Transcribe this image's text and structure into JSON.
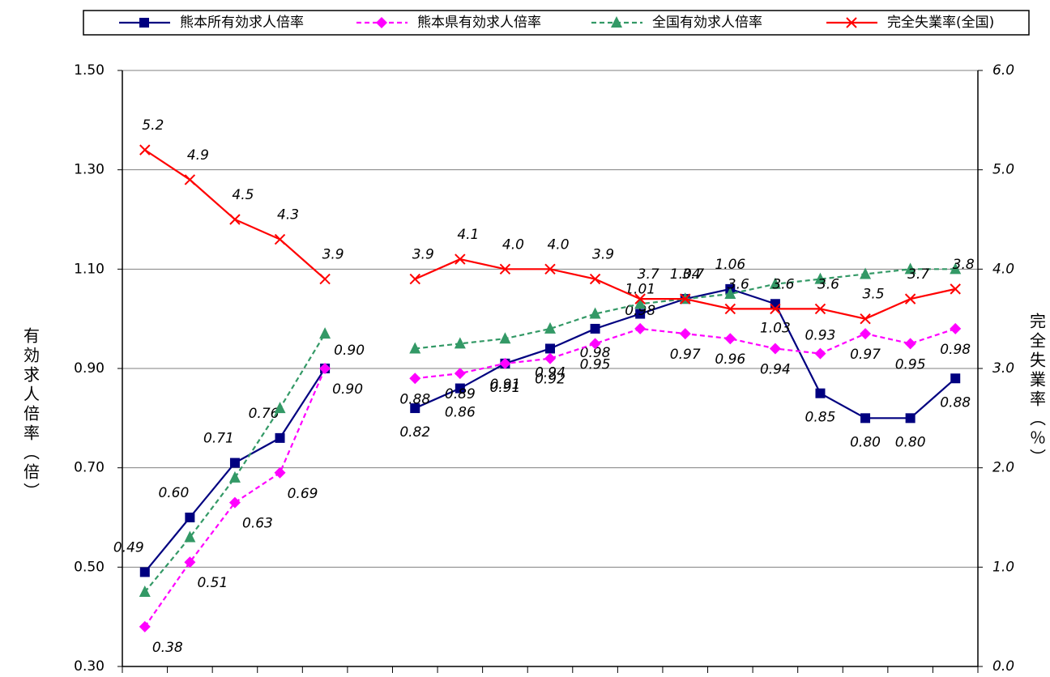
{
  "chart_data": {
    "type": "line",
    "categories": [
      null,
      null,
      null,
      null,
      null,
      null,
      null,
      null,
      null,
      null,
      null,
      null,
      null,
      null,
      null,
      null,
      null,
      null,
      null
    ],
    "y_label": "有効求人倍率（倍）",
    "y2_label": "完全失業率（％）",
    "ylim": [
      0.3,
      1.5
    ],
    "yticks": [
      {
        "value": 0.3,
        "label": "0.30"
      },
      {
        "value": 0.5,
        "label": "0.50"
      },
      {
        "value": 0.7,
        "label": "0.70"
      },
      {
        "value": 0.9,
        "label": "0.90"
      },
      {
        "value": 1.1,
        "label": "1.10"
      },
      {
        "value": 1.3,
        "label": "1.30"
      },
      {
        "value": 1.5,
        "label": "1.50"
      }
    ],
    "y2lim": [
      0,
      6
    ],
    "y2ticks": [
      {
        "value": 0,
        "label": "0.0"
      },
      {
        "value": 1,
        "label": "1.0"
      },
      {
        "value": 2,
        "label": "2.0"
      },
      {
        "value": 3,
        "label": "3.0"
      },
      {
        "value": 4,
        "label": "4.0"
      },
      {
        "value": 5,
        "label": "5.0"
      },
      {
        "value": 6,
        "label": "6.0"
      }
    ],
    "grid": true,
    "legend": "top",
    "series": [
      {
        "name": "熊本所有効求人倍率",
        "color": "#000080",
        "marker": "square",
        "dashed": false,
        "values": [
          0.49,
          0.6,
          0.71,
          0.76,
          0.9,
          null,
          0.82,
          0.86,
          0.91,
          0.94,
          0.98,
          1.01,
          1.04,
          1.06,
          1.03,
          0.85,
          0.8,
          0.8,
          0.88
        ],
        "value_labels": [
          "0.49",
          "0.60",
          "0.71",
          "0.76",
          "0.90",
          null,
          "0.82",
          "0.86",
          "0.91",
          "0.94",
          "0.98",
          "1.01",
          "1.04",
          "1.06",
          "1.03",
          "0.85",
          "0.80",
          "0.80",
          "0.88"
        ]
      },
      {
        "name": "熊本県有効求人倍率",
        "color": "#ff00ff",
        "marker": "diamond",
        "dashed": true,
        "values": [
          0.38,
          0.51,
          0.63,
          0.69,
          0.9,
          null,
          0.88,
          0.89,
          0.91,
          0.92,
          0.95,
          0.98,
          0.97,
          0.96,
          0.94,
          0.93,
          0.97,
          0.95,
          0.98
        ],
        "value_labels": [
          "0.38",
          "0.51",
          "0.63",
          "0.69",
          "0.90",
          null,
          "0.88",
          "0.89",
          "0.91",
          "0.92",
          "0.95",
          "0.98",
          "0.97",
          "0.96",
          "0.94",
          "0.93",
          "0.97",
          "0.95",
          "0.98"
        ]
      },
      {
        "name": "全国有効求人倍率",
        "color": "#339966",
        "marker": "triangle",
        "dashed": true,
        "values": [
          0.45,
          0.56,
          0.68,
          0.82,
          0.97,
          null,
          0.94,
          0.95,
          0.96,
          0.98,
          1.01,
          1.03,
          1.04,
          1.05,
          1.07,
          1.08,
          1.09,
          1.1,
          1.1
        ]
      },
      {
        "name": "完全失業率(全国)",
        "color": "#ff0000",
        "marker": "x",
        "dashed": false,
        "axis": "y2",
        "values": [
          5.2,
          4.9,
          4.5,
          4.3,
          3.9,
          null,
          3.9,
          4.1,
          4.0,
          4.0,
          3.9,
          3.7,
          3.7,
          3.6,
          3.6,
          3.6,
          3.5,
          3.7,
          3.8
        ],
        "value_labels": [
          "5.2",
          "4.9",
          "4.5",
          "4.3",
          "3.9",
          null,
          "3.9",
          "4.1",
          "4.0",
          "4.0",
          "3.9",
          "3.7",
          "3.7",
          "3.6",
          "3.6",
          "3.6",
          "3.5",
          "3.7",
          "3.8"
        ]
      }
    ]
  }
}
